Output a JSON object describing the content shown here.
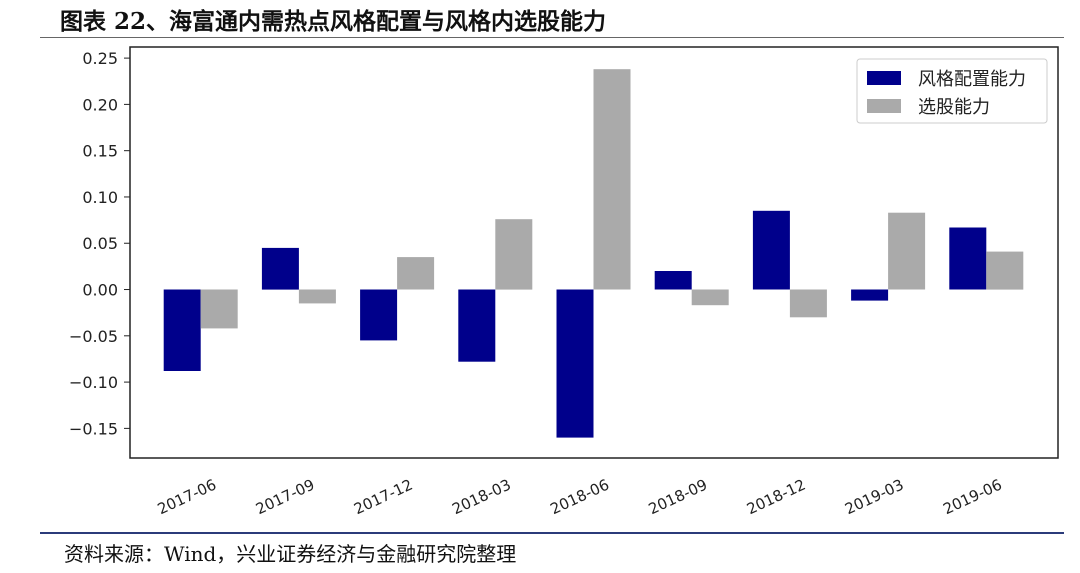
{
  "figure": {
    "title": "图表 22、海富通内需热点风格配置与风格内选股能力",
    "source": "资料来源：Wind，兴业证券经济与金融研究院整理"
  },
  "colors": {
    "series1": "#00008b",
    "series2": "#aaaaaa"
  },
  "chart_data": {
    "type": "bar",
    "categories": [
      "2017-06",
      "2017-09",
      "2017-12",
      "2018-03",
      "2018-06",
      "2018-09",
      "2018-12",
      "2019-03",
      "2019-06"
    ],
    "series": [
      {
        "name": "风格配置能力",
        "values": [
          -0.088,
          0.045,
          -0.055,
          -0.078,
          -0.16,
          0.02,
          0.085,
          -0.012,
          0.067
        ]
      },
      {
        "name": "选股能力",
        "values": [
          -0.042,
          -0.015,
          0.035,
          0.076,
          0.238,
          -0.017,
          -0.03,
          0.083,
          0.041
        ]
      }
    ],
    "ylim": [
      -0.182,
      0.262
    ],
    "yticks": [
      "0.25",
      "0.20",
      "0.15",
      "0.10",
      "0.05",
      "0.00",
      "−0.05",
      "−0.10",
      "−0.15"
    ],
    "ytick_values": [
      0.25,
      0.2,
      0.15,
      0.1,
      0.05,
      0,
      -0.05,
      -0.1,
      -0.15
    ],
    "xlabel": "",
    "ylabel": "",
    "grid": false,
    "legend_position": "top-right"
  }
}
